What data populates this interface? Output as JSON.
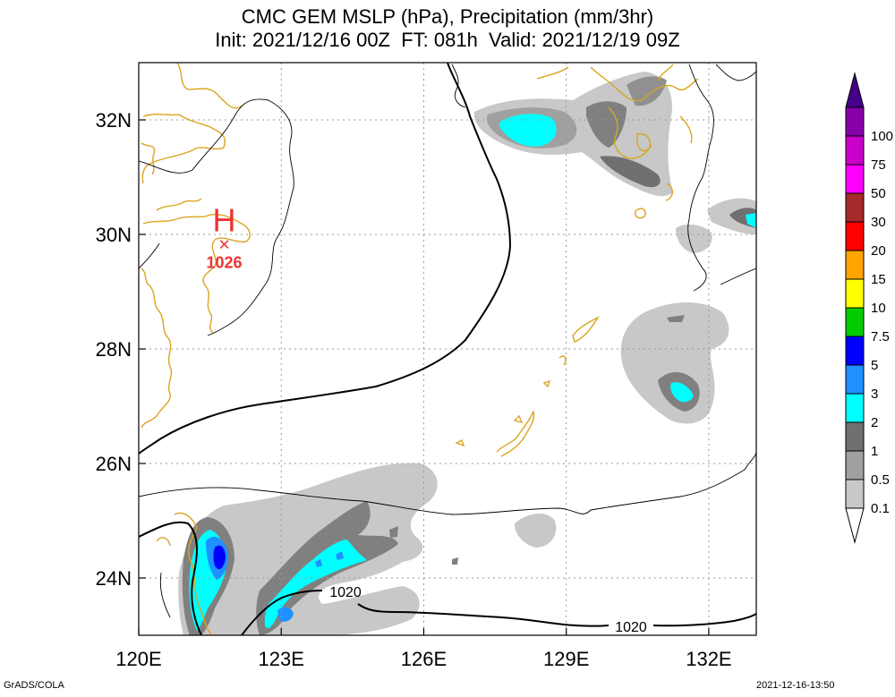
{
  "title": {
    "line1": "CMC GEM MSLP (hPa), Precipitation (mm/3hr)",
    "line2": "Init: 2021/12/16 00Z  FT: 081h  Valid: 2021/12/19 09Z"
  },
  "map": {
    "lon_range": [
      120,
      133
    ],
    "lat_range": [
      23,
      33
    ],
    "x_ticks": [
      "120E",
      "123E",
      "126E",
      "129E",
      "132E"
    ],
    "x_tick_values": [
      120,
      123,
      126,
      129,
      132
    ],
    "y_ticks": [
      "24N",
      "26N",
      "28N",
      "30N",
      "32N"
    ],
    "y_tick_values": [
      24,
      26,
      28,
      30,
      32
    ]
  },
  "pressure": {
    "high_symbol": "H",
    "high_value": "1026",
    "high_lon": 121.8,
    "high_lat": 29.85,
    "isobar_labels": [
      "1020",
      "1020"
    ],
    "high_color": "#ee3333"
  },
  "colorbar": {
    "labels": [
      "0.1",
      "0.5",
      "1",
      "2",
      "3",
      "5",
      "7.5",
      "10",
      "15",
      "20",
      "30",
      "50",
      "75",
      "100"
    ],
    "colors": [
      "#c8c8c8",
      "#a0a0a0",
      "#707070",
      "#00ffff",
      "#1e90ff",
      "#0000ff",
      "#00cc00",
      "#ffff00",
      "#ffa500",
      "#ff0000",
      "#a52a2a",
      "#ff00ff",
      "#cc00cc",
      "#8800aa"
    ],
    "top_color": "#440088"
  },
  "colors": {
    "coastline": "#daa520",
    "isobar": "#000000",
    "grid": "#999999"
  },
  "footer": {
    "left": "GrADS/COLA",
    "right": "2021-12-16-13:50"
  }
}
